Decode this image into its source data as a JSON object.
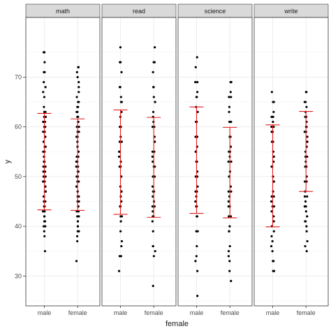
{
  "chart_data": {
    "type": "scatter",
    "facet_variable": "variable",
    "facets": [
      "math",
      "read",
      "science",
      "write"
    ],
    "categories": [
      "male",
      "female"
    ],
    "xlabel": "female",
    "ylabel": "y",
    "ylim": [
      24,
      82
    ],
    "yticks": [
      30,
      40,
      50,
      60,
      70
    ],
    "grid": true,
    "error_bar_color": "#e41a1c",
    "point_color": "#000000",
    "panels": [
      {
        "facet": "math",
        "points": {
          "male": [
            35,
            38,
            39,
            40,
            40,
            41,
            41,
            42,
            42,
            43,
            43,
            44,
            44,
            45,
            45,
            46,
            46,
            47,
            47,
            48,
            48,
            49,
            49,
            50,
            50,
            51,
            51,
            52,
            52,
            53,
            53,
            54,
            54,
            55,
            55,
            56,
            56,
            57,
            57,
            58,
            58,
            59,
            59,
            60,
            60,
            61,
            61,
            62,
            62,
            63,
            63,
            64,
            66,
            67,
            68,
            69,
            71,
            71,
            73,
            75,
            75
          ],
          "female": [
            33,
            37,
            38,
            39,
            39,
            40,
            40,
            41,
            41,
            42,
            42,
            43,
            43,
            44,
            44,
            45,
            45,
            46,
            46,
            47,
            47,
            48,
            48,
            49,
            49,
            50,
            50,
            51,
            51,
            52,
            52,
            53,
            53,
            54,
            54,
            55,
            55,
            56,
            56,
            57,
            57,
            58,
            58,
            59,
            59,
            60,
            60,
            61,
            61,
            62,
            62,
            63,
            63,
            64,
            64,
            65,
            65,
            66,
            67,
            68,
            69,
            70,
            71,
            72,
            72
          ]
        },
        "error_bars": {
          "male": {
            "lower": 43.3,
            "upper": 62.7
          },
          "female": {
            "lower": 43.2,
            "upper": 61.6
          }
        }
      },
      {
        "facet": "read",
        "points": {
          "male": [
            31,
            34,
            34,
            36,
            37,
            39,
            41,
            42,
            42,
            44,
            44,
            45,
            46,
            47,
            47,
            48,
            50,
            50,
            52,
            52,
            53,
            54,
            55,
            55,
            57,
            57,
            58,
            60,
            60,
            62,
            63,
            65,
            65,
            66,
            68,
            68,
            71,
            73,
            73,
            76
          ],
          "female": [
            28,
            34,
            35,
            36,
            36,
            39,
            41,
            42,
            42,
            43,
            44,
            44,
            45,
            46,
            47,
            47,
            48,
            50,
            50,
            52,
            52,
            53,
            54,
            55,
            55,
            57,
            57,
            58,
            60,
            60,
            61,
            62,
            63,
            65,
            65,
            66,
            68,
            68,
            71,
            73,
            73,
            76
          ]
        },
        "error_bars": {
          "male": {
            "lower": 42.4,
            "upper": 63.4
          },
          "female": {
            "lower": 41.8,
            "upper": 61.9
          }
        }
      },
      {
        "facet": "science",
        "points": {
          "male": [
            26,
            31,
            33,
            34,
            36,
            39,
            39,
            42,
            42,
            44,
            44,
            45,
            46,
            47,
            47,
            48,
            50,
            50,
            51,
            53,
            53,
            55,
            55,
            56,
            58,
            58,
            58,
            61,
            61,
            63,
            64,
            66,
            66,
            67,
            69,
            69,
            72,
            74
          ],
          "female": [
            29,
            31,
            33,
            34,
            35,
            36,
            39,
            39,
            40,
            42,
            42,
            44,
            44,
            45,
            46,
            47,
            47,
            48,
            50,
            50,
            51,
            53,
            53,
            54,
            55,
            55,
            56,
            58,
            58,
            58,
            61,
            61,
            63,
            64,
            66,
            66,
            67,
            69,
            69
          ]
        },
        "error_bars": {
          "male": {
            "lower": 42.6,
            "upper": 64.0
          },
          "female": {
            "lower": 41.7,
            "upper": 59.9
          }
        }
      },
      {
        "facet": "write",
        "points": {
          "male": [
            31,
            31,
            33,
            33,
            35,
            36,
            37,
            38,
            39,
            40,
            41,
            41,
            42,
            43,
            44,
            44,
            45,
            46,
            46,
            47,
            49,
            49,
            50,
            52,
            52,
            53,
            54,
            54,
            55,
            57,
            57,
            59,
            59,
            60,
            60,
            61,
            62,
            62,
            63,
            65,
            65,
            67
          ],
          "female": [
            35,
            36,
            37,
            39,
            40,
            41,
            41,
            42,
            43,
            44,
            44,
            45,
            46,
            46,
            47,
            49,
            49,
            50,
            52,
            52,
            53,
            54,
            54,
            55,
            56,
            57,
            57,
            58,
            59,
            59,
            60,
            60,
            61,
            62,
            62,
            63,
            64,
            65,
            65,
            67,
            67
          ]
        },
        "error_bars": {
          "male": {
            "lower": 39.9,
            "upper": 60.4
          },
          "female": {
            "lower": 47.0,
            "upper": 63.1
          }
        }
      }
    ]
  }
}
